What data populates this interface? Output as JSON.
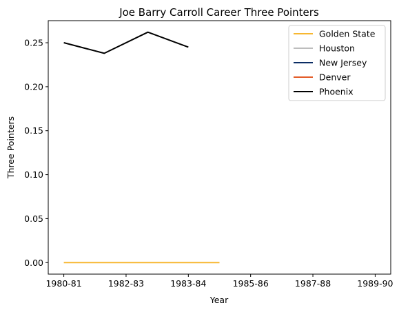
{
  "chart_data": {
    "type": "line",
    "title": "Joe Barry Carroll Career Three Pointers",
    "xlabel": "Year",
    "ylabel": "Three Pointers",
    "x_ticks": [
      "1980-81",
      "1982-83",
      "1983-84",
      "1985-86",
      "1987-88",
      "1989-90"
    ],
    "x_range": [
      -0.25,
      5.25
    ],
    "ylim": [
      -0.0131,
      0.2751
    ],
    "y_ticks": [
      0.0,
      0.05,
      0.1,
      0.15,
      0.2,
      0.25
    ],
    "y_tick_labels": [
      "0.00",
      "0.05",
      "0.10",
      "0.15",
      "0.20",
      "0.25"
    ],
    "grid": false,
    "legend_position": "top-right",
    "series": [
      {
        "name": "Golden State",
        "color": "#f7b731",
        "x": [
          0,
          1,
          2,
          2.5
        ],
        "y": [
          0.0,
          0.0,
          0.0,
          0.0
        ]
      },
      {
        "name": "Houston",
        "color": "#bdbdbd",
        "x": [],
        "y": []
      },
      {
        "name": "New Jersey",
        "color": "#0b2d64",
        "x": [],
        "y": []
      },
      {
        "name": "Denver",
        "color": "#e35a26",
        "x": [],
        "y": []
      },
      {
        "name": "Phoenix",
        "color": "#000000",
        "x": [
          0,
          0.65,
          1.35,
          2
        ],
        "y": [
          0.25,
          0.238,
          0.262,
          0.245
        ]
      }
    ]
  }
}
